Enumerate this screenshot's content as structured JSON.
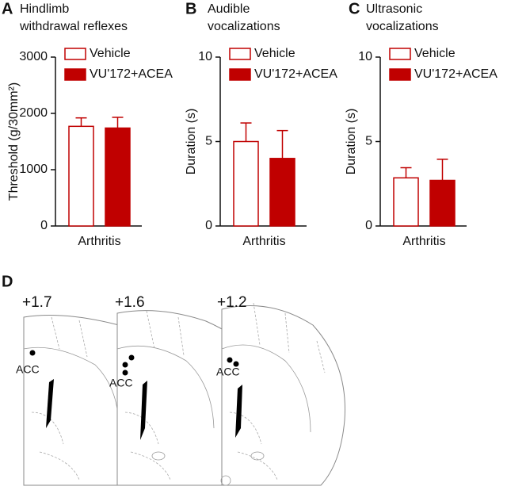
{
  "chart_data": [
    {
      "type": "bar",
      "panel": "A",
      "title_lines": [
        "Hindlimb",
        "withdrawal reflexes"
      ],
      "ylabel": "Threshold (g/30mm²)",
      "categories": [
        "Arthritis"
      ],
      "ylim": [
        0,
        3000
      ],
      "yticks": [
        0,
        1000,
        2000,
        3000
      ],
      "series": [
        {
          "name": "Vehicle",
          "color": "#ffffff",
          "edgecolor": "#c00000",
          "values": [
            1770
          ],
          "errors": [
            150
          ]
        },
        {
          "name": "VU'172+ACEA",
          "color": "#c00000",
          "edgecolor": "#c00000",
          "values": [
            1740
          ],
          "errors": [
            190
          ]
        }
      ]
    },
    {
      "type": "bar",
      "panel": "B",
      "title_lines": [
        "Audible",
        "vocalizations"
      ],
      "ylabel": "Duration (s)",
      "categories": [
        "Arthritis"
      ],
      "ylim": [
        0,
        10
      ],
      "yticks": [
        0,
        5,
        10
      ],
      "series": [
        {
          "name": "Vehicle",
          "color": "#ffffff",
          "edgecolor": "#c00000",
          "values": [
            5.0
          ],
          "errors": [
            1.1
          ]
        },
        {
          "name": "VU'172+ACEA",
          "color": "#c00000",
          "edgecolor": "#c00000",
          "values": [
            4.0
          ],
          "errors": [
            1.65
          ]
        }
      ]
    },
    {
      "type": "bar",
      "panel": "C",
      "title_lines": [
        "Ultrasonic",
        "vocalizations"
      ],
      "ylabel": "Duration (s)",
      "categories": [
        "Arthritis"
      ],
      "ylim": [
        0,
        10
      ],
      "yticks": [
        0,
        5,
        10
      ],
      "series": [
        {
          "name": "Vehicle",
          "color": "#ffffff",
          "edgecolor": "#c00000",
          "values": [
            2.85
          ],
          "errors": [
            0.6
          ]
        },
        {
          "name": "VU'172+ACEA",
          "color": "#c00000",
          "edgecolor": "#c00000",
          "values": [
            2.7
          ],
          "errors": [
            1.25
          ]
        }
      ]
    }
  ],
  "panel_d": {
    "panel": "D",
    "sections": [
      {
        "label": "+1.7",
        "region": "ACC"
      },
      {
        "label": "+1.6",
        "region": "ACC"
      },
      {
        "label": "+1.2",
        "region": "ACC"
      }
    ]
  }
}
